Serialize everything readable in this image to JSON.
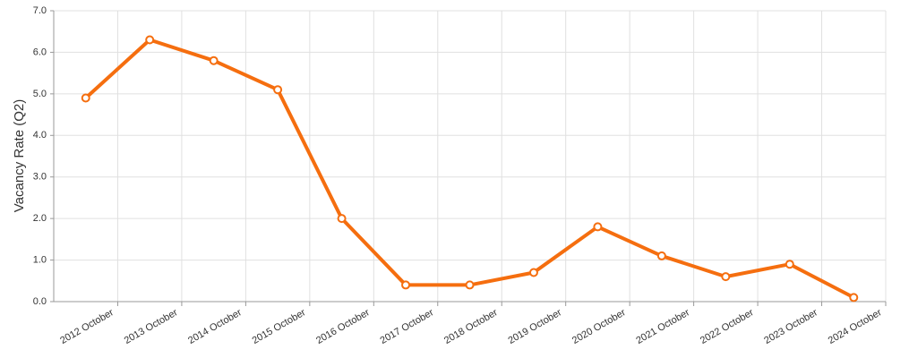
{
  "chart_data": {
    "type": "line",
    "y_label": "Vacancy Rate (Q2)",
    "categories": [
      "2012 October",
      "2013 October",
      "2014 October",
      "2015 October",
      "2016 October",
      "2017 October",
      "2018 October",
      "2019 October",
      "2020 October",
      "2021 October",
      "2022 October",
      "2023 October",
      "2024 October"
    ],
    "values": [
      4.9,
      6.3,
      5.8,
      5.1,
      2.0,
      0.4,
      0.4,
      0.7,
      1.8,
      1.1,
      0.6,
      0.9,
      0.1
    ],
    "color": "#f56e0f",
    "ylim": [
      0,
      7
    ],
    "yticks": [
      {
        "value": 0,
        "label": "0.0"
      },
      {
        "value": 1,
        "label": "1.0"
      },
      {
        "value": 2,
        "label": "2.0"
      },
      {
        "value": 3,
        "label": "3.0"
      },
      {
        "value": 4,
        "label": "4.0"
      },
      {
        "value": 5,
        "label": "5.0"
      },
      {
        "value": 6,
        "label": "6.0"
      },
      {
        "value": 7,
        "label": "7.0"
      }
    ],
    "grid": true
  }
}
